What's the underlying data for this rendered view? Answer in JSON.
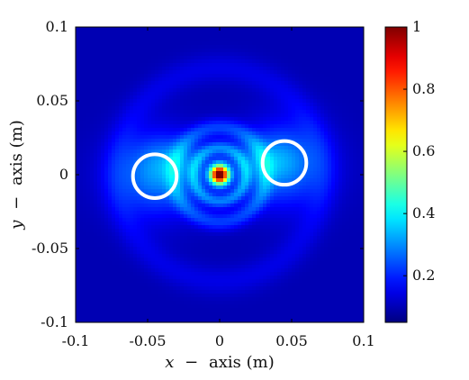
{
  "chart_data": {
    "type": "heatmap",
    "title": "",
    "xlabel": {
      "math": "x",
      "text": "axis (m)"
    },
    "ylabel": {
      "math": "y",
      "text": "axis (m)"
    },
    "xlim": [
      -0.1,
      0.1
    ],
    "ylim": [
      -0.1,
      0.1
    ],
    "x_ticks": [
      -0.1,
      -0.05,
      0,
      0.05,
      0.1
    ],
    "x_tick_labels": [
      "-0.1",
      "-0.05",
      "0",
      "0.05",
      "0.1"
    ],
    "y_ticks": [
      0.1,
      0.05,
      0,
      -0.05,
      -0.1
    ],
    "y_tick_labels": [
      "0.1",
      "0.05",
      "0",
      "-0.05",
      "-0.1"
    ],
    "colorbar": {
      "colormap": "jet",
      "range": [
        0.05,
        1
      ],
      "ticks": [
        1,
        0.8,
        0.6,
        0.4,
        0.2
      ],
      "tick_labels": [
        "1",
        "0.8",
        "0.6",
        "0.4",
        "0.2"
      ]
    },
    "field_features": {
      "peak": {
        "x": 0.0,
        "y": 0.0,
        "value": 1.0
      },
      "circles": [
        {
          "center_x": -0.045,
          "center_y": -0.001,
          "radius": 0.015,
          "color": "#ffffff"
        },
        {
          "center_x": 0.045,
          "center_y": 0.008,
          "radius": 0.015,
          "color": "#ffffff"
        }
      ],
      "notes": "central focal spot with surrounding rings and side lobes over a dark-blue background"
    }
  }
}
